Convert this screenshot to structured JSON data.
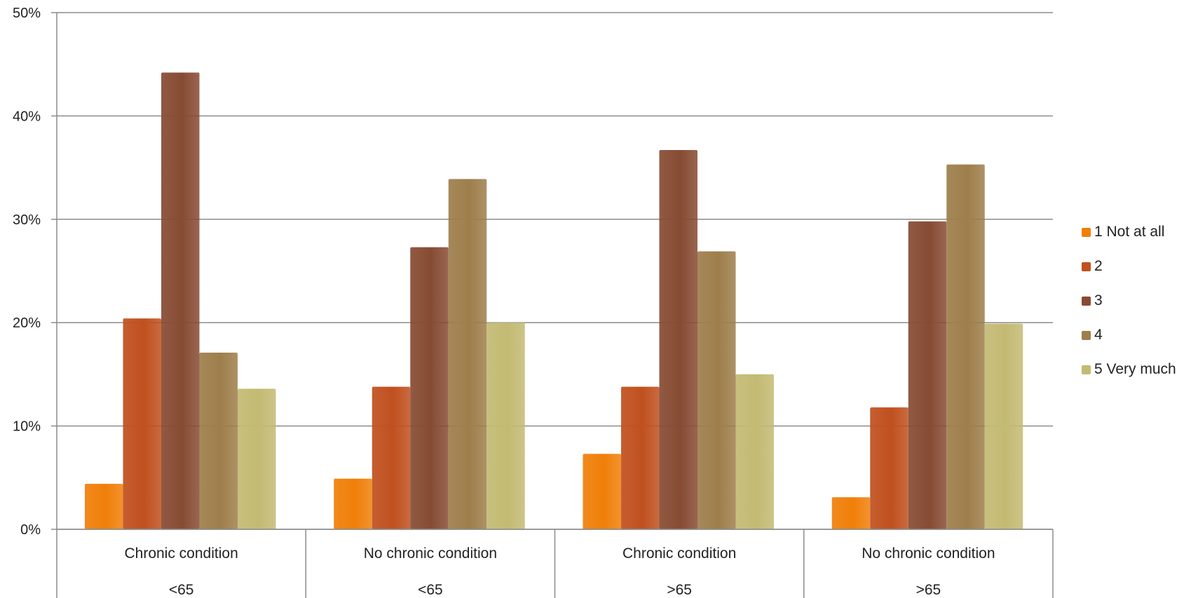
{
  "chart_data": {
    "type": "bar",
    "title": "",
    "xlabel": "",
    "ylabel": "",
    "ylim": [
      0,
      50
    ],
    "y_ticks": [
      "0%",
      "10%",
      "20%",
      "30%",
      "40%",
      "50%"
    ],
    "y_tick_values": [
      0,
      10,
      20,
      30,
      40,
      50
    ],
    "grid": true,
    "legend_position": "right",
    "categories": [
      {
        "line1": "Chronic condition",
        "line2": "<65"
      },
      {
        "line1": "No chronic condition",
        "line2": "<65"
      },
      {
        "line1": "Chronic condition",
        "line2": ">65"
      },
      {
        "line1": "No chronic condition",
        "line2": ">65"
      }
    ],
    "series": [
      {
        "name": "1 Not at all",
        "color": "#F07F09",
        "values": [
          4.4,
          4.9,
          7.3,
          3.1
        ]
      },
      {
        "name": "2",
        "color": "#C0501F",
        "values": [
          20.4,
          13.8,
          13.8,
          11.8
        ]
      },
      {
        "name": "3",
        "color": "#874B33",
        "values": [
          44.2,
          27.3,
          36.7,
          29.8
        ]
      },
      {
        "name": "4",
        "color": "#9E7E4B",
        "values": [
          17.1,
          33.9,
          26.9,
          35.3
        ]
      },
      {
        "name": "5 Very much",
        "color": "#C3BA73",
        "values": [
          13.6,
          20.0,
          15.0,
          19.9
        ]
      }
    ]
  }
}
